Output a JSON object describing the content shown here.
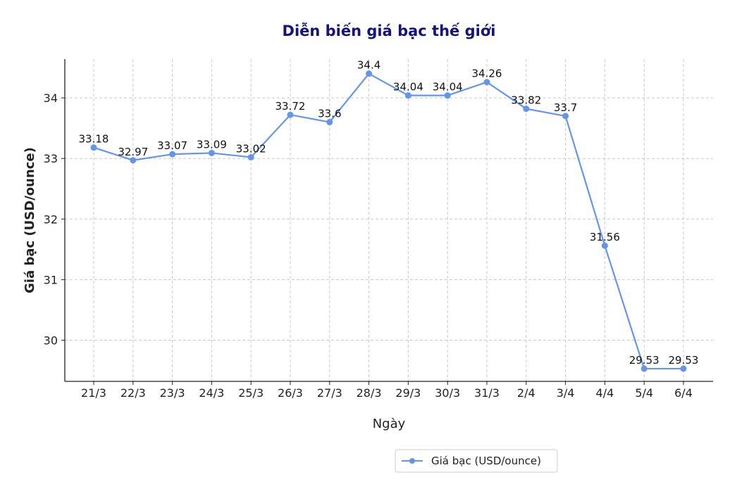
{
  "chart_data": {
    "type": "line",
    "title": "Diễn biến giá bạc thế giới",
    "xlabel": "Ngày",
    "ylabel": "Giá bạc (USD/ounce)",
    "categories": [
      "21/3",
      "22/3",
      "23/3",
      "24/3",
      "25/3",
      "26/3",
      "27/3",
      "28/3",
      "29/3",
      "30/3",
      "31/3",
      "2/4",
      "3/4",
      "4/4",
      "5/4",
      "6/4"
    ],
    "series": [
      {
        "name": "Giá bạc (USD/ounce)",
        "values": [
          33.18,
          32.97,
          33.07,
          33.09,
          33.02,
          33.72,
          33.6,
          34.4,
          34.04,
          34.04,
          34.26,
          33.82,
          33.7,
          31.56,
          29.53,
          29.53
        ],
        "labels": [
          "33.18",
          "32.97",
          "33.07",
          "33.09",
          "33.02",
          "33.72",
          "33.6",
          "34.4",
          "34.04",
          "34.04",
          "34.26",
          "33.82",
          "33.7",
          "31.56",
          "29.53",
          "29.53"
        ]
      }
    ],
    "yticks": [
      30,
      31,
      32,
      33,
      34
    ],
    "ylim": [
      29.32,
      34.64
    ],
    "grid": true,
    "legend": "bottom-right",
    "color": "#6495ed"
  }
}
